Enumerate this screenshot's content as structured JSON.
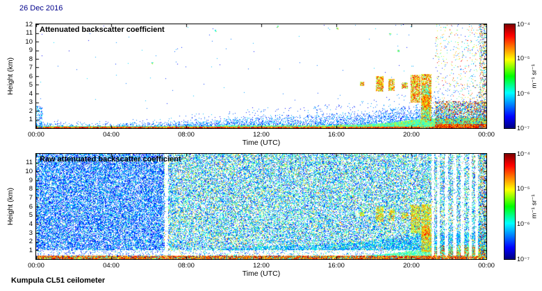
{
  "header": {
    "date_label": "26 Dec 2016"
  },
  "footer": {
    "instrument_label": "Kumpula CL51 ceilometer"
  },
  "chart_data": [
    {
      "type": "heatmap",
      "panel": "processed",
      "title": "Attenuated backscatter coefficient",
      "xlabel": "Time (UTC)",
      "ylabel": "Height (km)",
      "x_ticks": [
        "00:00",
        "04:00",
        "08:00",
        "12:00",
        "16:00",
        "20:00",
        "00:00"
      ],
      "x_tick_hours": [
        0,
        4,
        8,
        12,
        16,
        20,
        24
      ],
      "xlim_hours": [
        0,
        24
      ],
      "y_ticks": [
        1,
        2,
        3,
        4,
        5,
        6,
        7,
        8,
        9,
        10,
        11,
        12
      ],
      "ylim_km": [
        0,
        12
      ],
      "colorbar": {
        "colormap": "jet",
        "scale": "log",
        "range": [
          "1e-7",
          "1e-4"
        ],
        "ticks": [
          "10⁻⁴",
          "10⁻⁵",
          "10⁻⁶",
          "10⁻⁷"
        ],
        "tick_positions": [
          0,
          0.333,
          0.667,
          1
        ],
        "label": "m⁻¹ sr⁻¹"
      },
      "features": {
        "aerosol_layer_top_km": {
          "hours": [
            0,
            1,
            4,
            6,
            7,
            8,
            9,
            10,
            12,
            14,
            16,
            18,
            19,
            20,
            21,
            24
          ],
          "top": [
            0.8,
            0.6,
            0.6,
            0.7,
            0.8,
            1.0,
            1.1,
            1.2,
            1.5,
            1.6,
            1.8,
            2.1,
            2.4,
            2.7,
            3.0,
            3.2
          ]
        },
        "dense_layer_top_km": {
          "hours": [
            0,
            8,
            12,
            16,
            17.5,
            19,
            20,
            21,
            24
          ],
          "top": [
            0.25,
            0.3,
            0.35,
            0.4,
            0.45,
            0.7,
            1.0,
            1.15,
            1.25
          ]
        },
        "surface_layer_km": 0.18,
        "left_edge_column": {
          "t1": 0.3,
          "top_km": 2.6
        },
        "clouds": [
          {
            "t0": 17.25,
            "t1": 17.45,
            "base": 4.9,
            "top": 5.4
          },
          {
            "t0": 18.1,
            "t1": 18.5,
            "base": 4.3,
            "top": 6.0
          },
          {
            "t0": 18.75,
            "t1": 19.1,
            "base": 4.4,
            "top": 5.7
          },
          {
            "t0": 19.45,
            "t1": 19.8,
            "base": 4.6,
            "top": 5.3
          },
          {
            "t0": 19.95,
            "t1": 20.45,
            "base": 3.0,
            "top": 6.2
          },
          {
            "t0": 20.5,
            "t1": 21.05,
            "base": 0.8,
            "top": 6.3
          }
        ],
        "precip_column": {
          "t0": 20.55,
          "t1": 20.95,
          "top": 5.0
        },
        "bright_blob": {
          "t": 20.75,
          "h": 3.1,
          "rt": 0.22,
          "rh": 0.9
        },
        "noisy_edge": {
          "t0": 21.25,
          "dense_top_km": 3.2
        },
        "right_edge_hour": 23.6,
        "isolated_specks": [
          {
            "t": 9.55,
            "h": 11.3
          },
          {
            "t": 12.85,
            "h": 11.75
          },
          {
            "t": 16.05,
            "h": 11.5
          },
          {
            "t": 18.85,
            "h": 10.9
          },
          {
            "t": 19.3,
            "h": 9.0
          },
          {
            "t": 6.2,
            "h": 7.5
          }
        ]
      }
    },
    {
      "type": "heatmap",
      "panel": "raw",
      "title": "Raw attenuated backscatter coefficient",
      "xlabel": "Time (UTC)",
      "ylabel": "Height (km)",
      "x_ticks": [
        "00:00",
        "04:00",
        "08:00",
        "12:00",
        "16:00",
        "20:00",
        "00:00"
      ],
      "x_tick_hours": [
        0,
        4,
        8,
        12,
        16,
        20,
        24
      ],
      "xlim_hours": [
        0,
        24
      ],
      "y_ticks": [
        1,
        2,
        3,
        4,
        5,
        6,
        7,
        8,
        9,
        10,
        11
      ],
      "ylim_km": [
        0,
        12
      ],
      "colorbar": {
        "colormap": "jet",
        "scale": "log",
        "range": [
          "1e-7",
          "1e-4"
        ],
        "ticks": [
          "10⁻⁴",
          "10⁻⁵",
          "10⁻⁶",
          "10⁻⁷"
        ],
        "tick_positions": [
          0,
          0.333,
          0.667,
          1
        ],
        "label": "m⁻¹ sr⁻¹"
      },
      "features": {
        "regime_change_hour": 6.8,
        "white_band_km": [
          0.45,
          1.05
        ],
        "surface_layer_km": 0.4,
        "aerosol_layer_top_km": {
          "hours": [
            0,
            1,
            4,
            6,
            7,
            8,
            9,
            10,
            12,
            14,
            16,
            18,
            19,
            20,
            21,
            24
          ],
          "top": [
            0.8,
            0.6,
            0.6,
            0.7,
            0.8,
            1.0,
            1.1,
            1.2,
            1.5,
            1.6,
            1.8,
            2.1,
            2.4,
            2.7,
            3.0,
            3.2
          ]
        },
        "dense_layer_top_km": {
          "hours": [
            0,
            8,
            12,
            16,
            17.5,
            19,
            20,
            21,
            24
          ],
          "top": [
            0.25,
            0.3,
            0.35,
            0.4,
            0.45,
            0.7,
            1.0,
            1.15,
            1.25
          ]
        },
        "clouds": [
          {
            "t0": 17.25,
            "t1": 17.45,
            "base": 4.9,
            "top": 5.4
          },
          {
            "t0": 18.1,
            "t1": 18.5,
            "base": 4.3,
            "top": 6.0
          },
          {
            "t0": 18.75,
            "t1": 19.1,
            "base": 4.4,
            "top": 5.7
          },
          {
            "t0": 19.45,
            "t1": 19.8,
            "base": 4.6,
            "top": 5.3
          },
          {
            "t0": 19.95,
            "t1": 20.45,
            "base": 3.0,
            "top": 6.2
          },
          {
            "t0": 20.5,
            "t1": 21.05,
            "base": 0.8,
            "top": 6.3
          }
        ],
        "bright_blob": {
          "t": 20.75,
          "h": 3.1,
          "rt": 0.22,
          "rh": 0.9
        },
        "attenuated_stripes": [
          [
            6.85,
            7.0
          ],
          [
            21.05,
            21.2
          ],
          [
            21.35,
            21.5
          ],
          [
            21.75,
            21.95
          ],
          [
            22.2,
            22.4
          ],
          [
            22.6,
            22.8
          ],
          [
            23.05,
            23.2
          ],
          [
            23.4,
            23.55
          ]
        ],
        "right_edge_hour": 23.6
      }
    }
  ]
}
